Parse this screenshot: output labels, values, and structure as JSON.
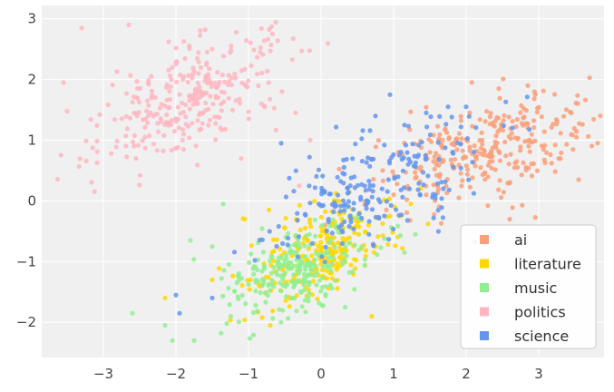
{
  "chart_data": {
    "type": "scatter",
    "title": "",
    "xlabel": "",
    "ylabel": "",
    "xlim": [
      -3.85,
      3.9
    ],
    "ylim": [
      -2.58,
      3.22
    ],
    "grid": true,
    "background": "#f0f0f0",
    "grid_color": "#ffffff",
    "x_ticks": [
      -3,
      -2,
      -1,
      0,
      1,
      2,
      3
    ],
    "x_tick_labels": [
      "−3",
      "−2",
      "−1",
      "0",
      "1",
      "2",
      "3"
    ],
    "y_ticks": [
      -2,
      -1,
      0,
      1,
      2,
      3
    ],
    "y_tick_labels": [
      "−2",
      "−1",
      "0",
      "1",
      "2",
      "3"
    ],
    "legend_position": "lower-right",
    "series": [
      {
        "name": "ai",
        "color": "#f9a07a",
        "center": [
          2.25,
          0.85
        ],
        "spread": [
          0.75,
          0.45
        ],
        "count": 300,
        "points": [
          [
            2.45,
            1.85
          ],
          [
            3.45,
            1.45
          ],
          [
            3.52,
            1.05
          ],
          [
            2.05,
            1.45
          ],
          [
            1.55,
            0.65
          ],
          [
            1.0,
            0.1
          ],
          [
            1.45,
            0.1
          ],
          [
            1.9,
            0.05
          ],
          [
            2.6,
            -0.3
          ],
          [
            3.3,
            0.7
          ],
          [
            3.55,
            0.35
          ],
          [
            2.85,
            1.9
          ],
          [
            2.2,
            0.55
          ],
          [
            0.9,
            -0.15
          ]
        ]
      },
      {
        "name": "literature",
        "color": "#ffd700",
        "center": [
          0.05,
          -0.85
        ],
        "spread": [
          0.48,
          0.4
        ],
        "count": 250,
        "points": [
          [
            -1.5,
            -1.3
          ],
          [
            -2.15,
            -1.6
          ],
          [
            0.7,
            -1.9
          ],
          [
            0.75,
            -0.75
          ],
          [
            -0.7,
            -2.05
          ],
          [
            0.95,
            -0.25
          ],
          [
            -1.05,
            -0.3
          ]
        ]
      },
      {
        "name": "music",
        "color": "#90ee90",
        "center": [
          -0.3,
          -1.1
        ],
        "spread": [
          0.55,
          0.45
        ],
        "count": 250,
        "points": [
          [
            -2.15,
            -2.05
          ],
          [
            -2.05,
            -2.3
          ],
          [
            -1.75,
            -2.3
          ],
          [
            -2.6,
            -1.85
          ],
          [
            -1.8,
            -0.65
          ],
          [
            -1.5,
            -0.75
          ],
          [
            1.15,
            -0.85
          ],
          [
            1.3,
            -0.55
          ],
          [
            0.55,
            -0.3
          ],
          [
            -1.35,
            -0.05
          ]
        ]
      },
      {
        "name": "politics",
        "color": "#ffb6c1",
        "center": [
          -1.85,
          1.65
        ],
        "spread": [
          0.65,
          0.5
        ],
        "count": 300,
        "points": [
          [
            -3.55,
            1.95
          ],
          [
            -2.65,
            2.9
          ],
          [
            -3.3,
            2.85
          ],
          [
            -1.5,
            2.5
          ],
          [
            -0.35,
            1.45
          ],
          [
            -0.15,
            1.0
          ],
          [
            -1.1,
            0.7
          ],
          [
            -0.3,
            0.25
          ],
          [
            -2.35,
            1.45
          ]
        ]
      },
      {
        "name": "science",
        "color": "#6495ed",
        "center": [
          0.75,
          0.25
        ],
        "spread": [
          0.7,
          0.55
        ],
        "count": 230,
        "points": [
          [
            0.95,
            1.75
          ],
          [
            1.45,
            1.45
          ],
          [
            1.75,
            1.55
          ],
          [
            0.75,
            1.4
          ],
          [
            -2.0,
            -1.55
          ],
          [
            -1.95,
            -1.85
          ],
          [
            -1.5,
            -1.6
          ],
          [
            -0.55,
            0.95
          ],
          [
            1.15,
            1.25
          ],
          [
            2.0,
            1.55
          ]
        ]
      }
    ]
  }
}
